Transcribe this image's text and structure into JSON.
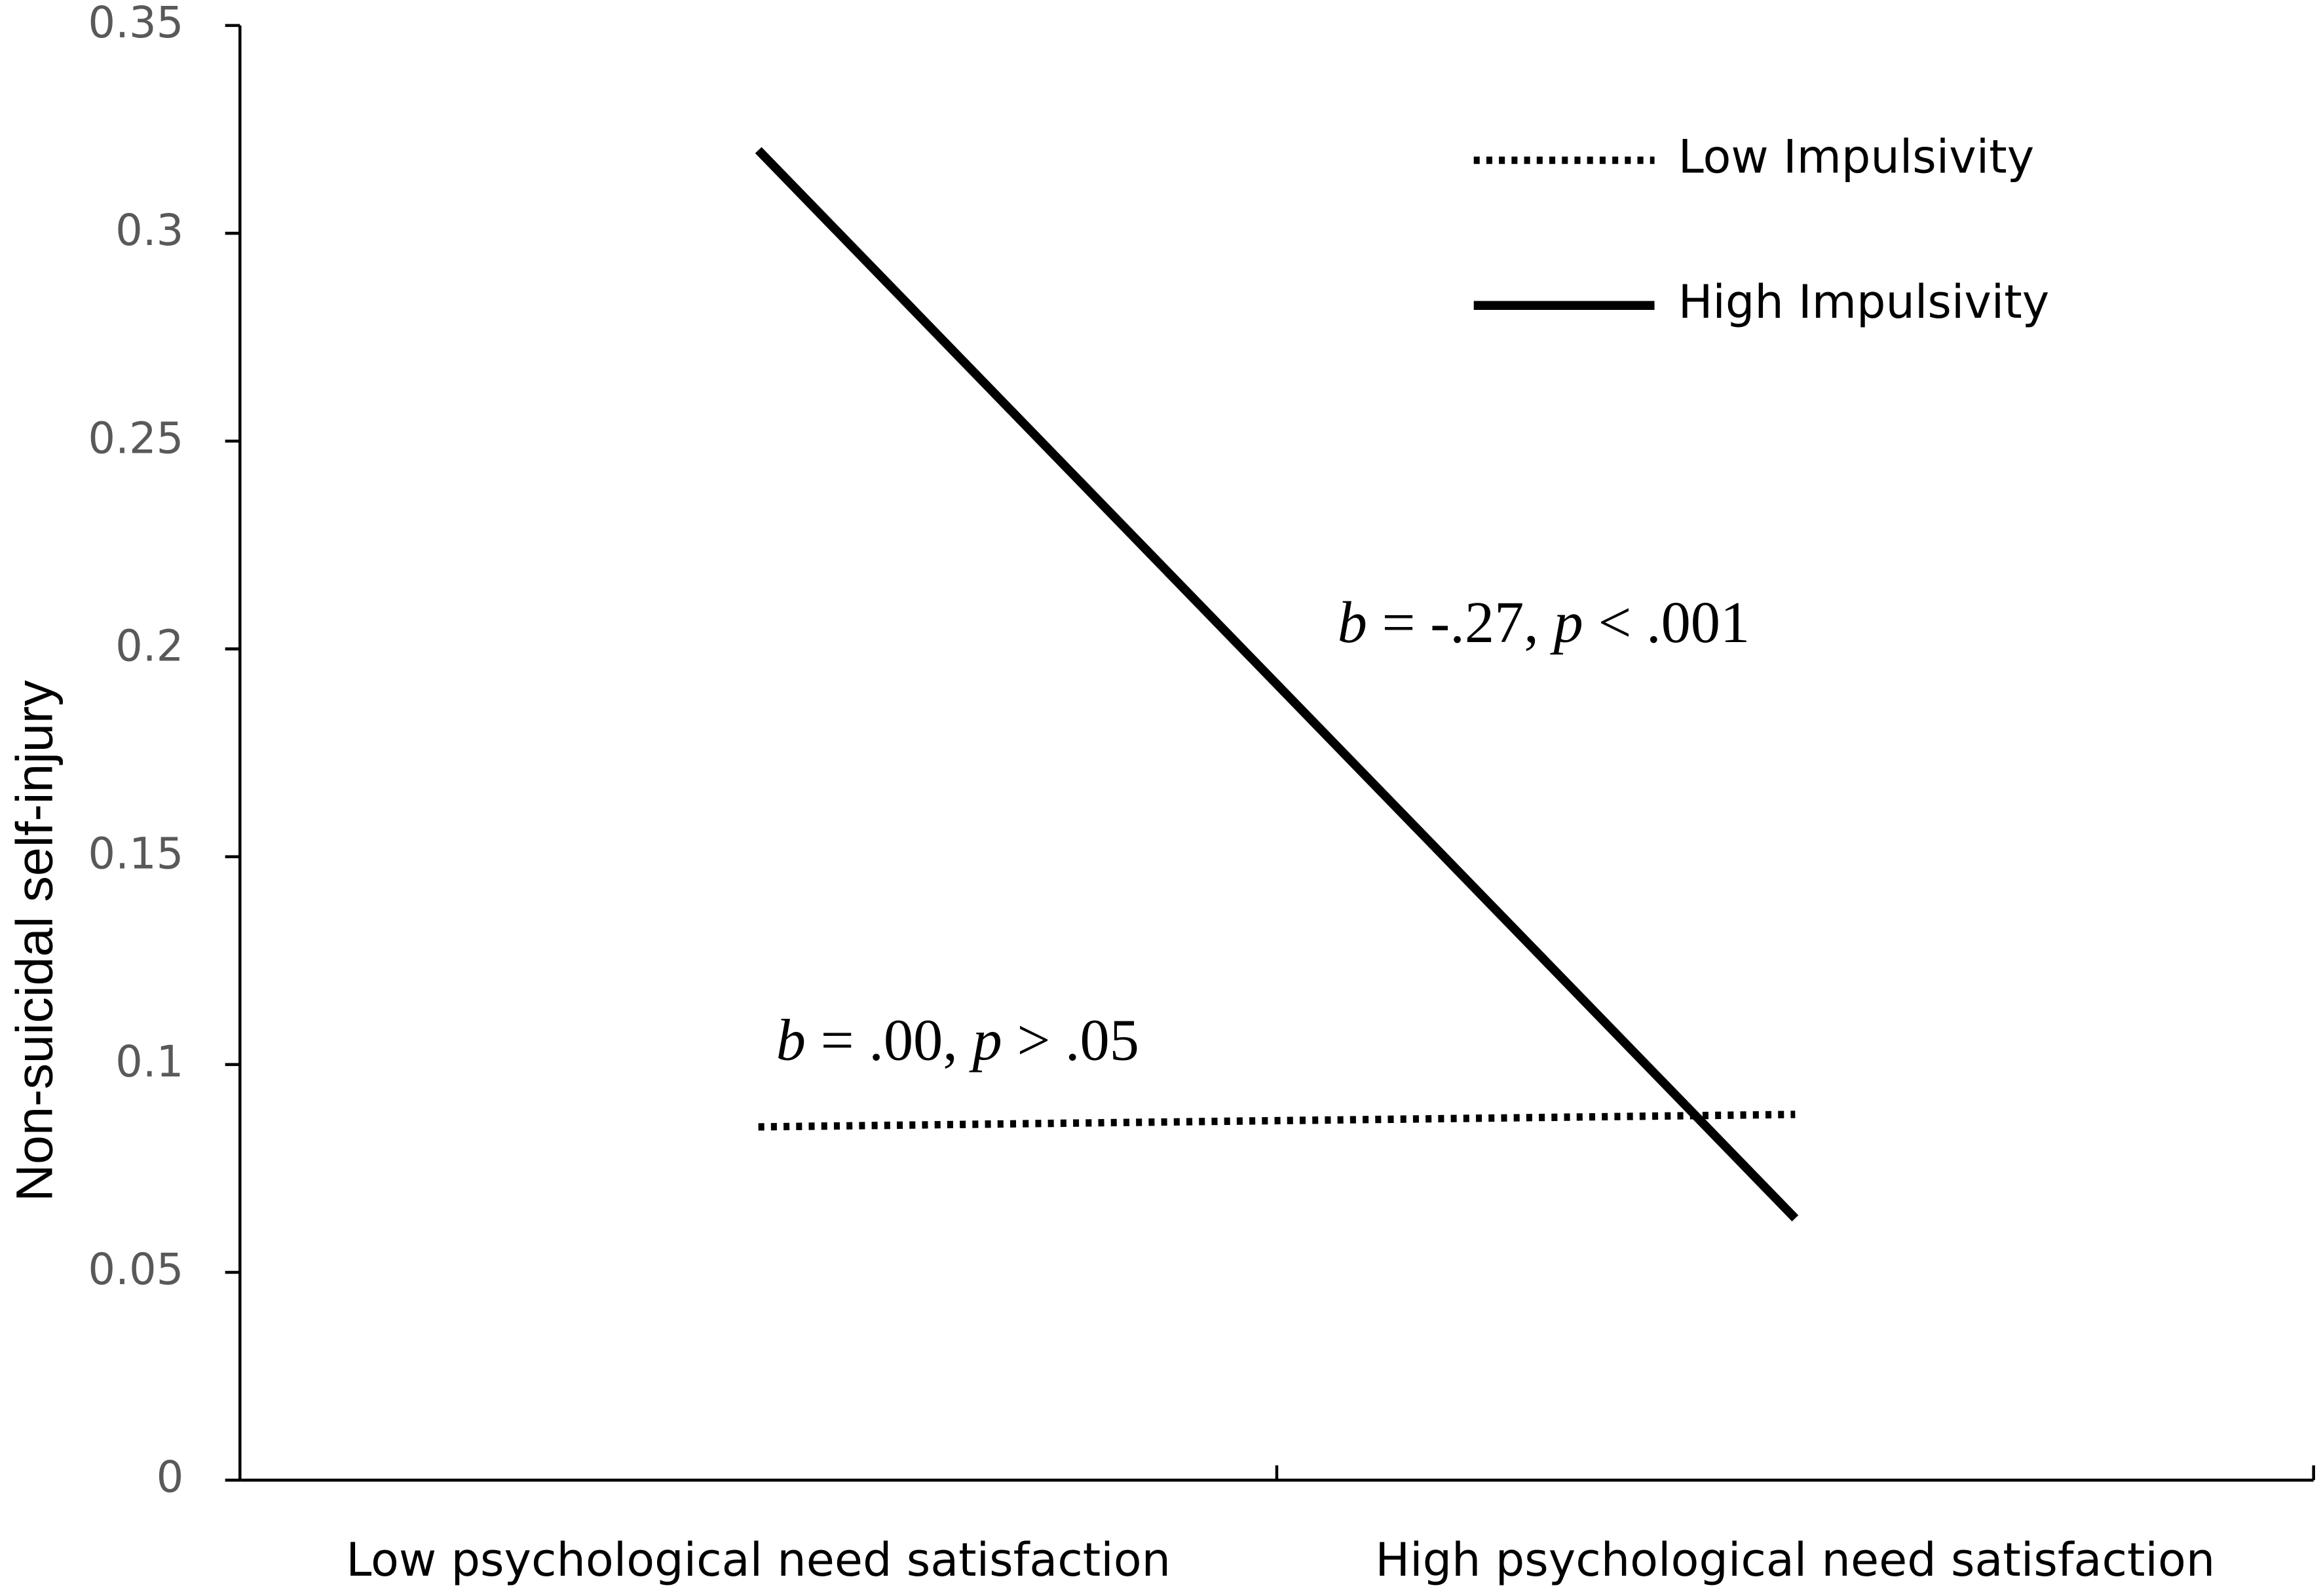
{
  "chart_data": {
    "type": "line",
    "y_label": "Non-suicidal self-injury",
    "categories": [
      "Low psychological need satisfaction",
      "High psychological need satisfaction"
    ],
    "series": [
      {
        "name": "Low Impulsivity",
        "color": "#000000",
        "style": "dotted",
        "values": [
          0.085,
          0.088
        ]
      },
      {
        "name": "High Impulsivity",
        "color": "#000000",
        "style": "solid",
        "values": [
          0.32,
          0.063
        ]
      }
    ],
    "ylim": [
      0,
      0.35
    ],
    "yticks": [
      0,
      0.05,
      0.1,
      0.15,
      0.2,
      0.25,
      0.3,
      0.35
    ],
    "grid": false,
    "legend": "top-right",
    "annotations": [
      {
        "parts": [
          "b",
          " = -.27, ",
          "p",
          " < .001"
        ]
      },
      {
        "parts": [
          "b",
          " = .00, ",
          "p",
          " > .05"
        ]
      }
    ]
  }
}
